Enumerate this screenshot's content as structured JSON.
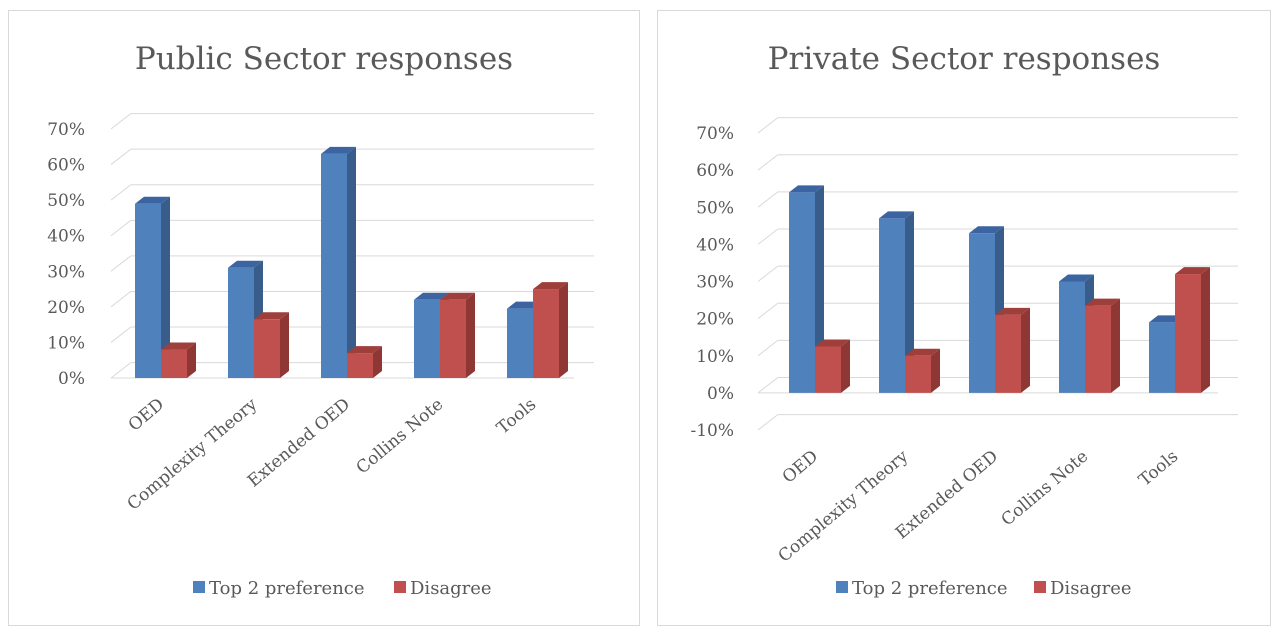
{
  "colors": {
    "top2_front": "#4F81BD",
    "top2_side": "#385D8A",
    "top2_top": "#3B64A0",
    "disagree_front": "#C0504D",
    "disagree_side": "#8E3735",
    "disagree_top": "#9E3F3C",
    "gridline": "#d9d9d9",
    "text": "#595959",
    "title": "#595959"
  },
  "chart_data": [
    {
      "type": "bar",
      "title": "Public Sector responses",
      "categories": [
        "OED",
        "Complexity Theory",
        "Extended OED",
        "Collins Note",
        "Tools"
      ],
      "series": [
        {
          "name": "Top 2 preference",
          "values": [
            0.49,
            0.31,
            0.63,
            0.22,
            0.195
          ]
        },
        {
          "name": "Disagree",
          "values": [
            0.08,
            0.165,
            0.07,
            0.22,
            0.25
          ]
        }
      ],
      "ylim": [
        0,
        0.7
      ],
      "yticks": [
        "0%",
        "10%",
        "20%",
        "30%",
        "40%",
        "50%",
        "60%",
        "70%"
      ],
      "grid": true,
      "legend": "bottom"
    },
    {
      "type": "bar",
      "title": "Private Sector responses",
      "categories": [
        "OED",
        "Complexity Theory",
        "Extended OED",
        "Collins Note",
        "Tools"
      ],
      "series": [
        {
          "name": "Top 2 preference",
          "values": [
            0.54,
            0.47,
            0.43,
            0.3,
            0.19
          ]
        },
        {
          "name": "Disagree",
          "values": [
            0.125,
            0.1,
            0.21,
            0.235,
            0.32
          ]
        }
      ],
      "ylim": [
        -0.1,
        0.7
      ],
      "yticks": [
        "-10%",
        "0%",
        "10%",
        "20%",
        "30%",
        "40%",
        "50%",
        "60%",
        "70%"
      ],
      "grid": true,
      "legend": "bottom"
    }
  ]
}
